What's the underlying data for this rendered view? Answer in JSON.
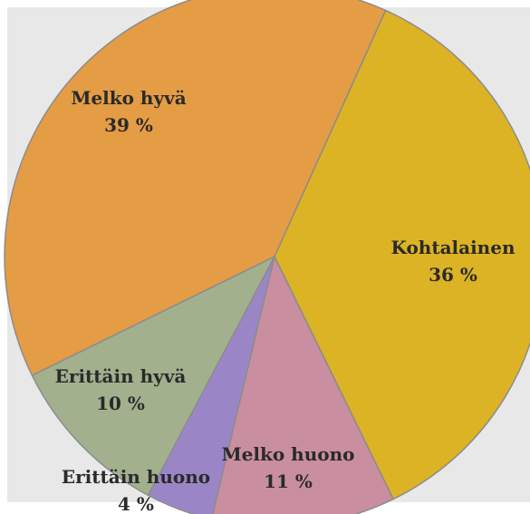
{
  "chart_data": {
    "type": "pie",
    "title": "",
    "slices": [
      {
        "label": "Kohtalainen",
        "value": 36,
        "value_text": "36 %",
        "color": "#dcb324"
      },
      {
        "label": "Melko huono",
        "value": 11,
        "value_text": "11 %",
        "color": "#c98e9f"
      },
      {
        "label": "Erittäin huono",
        "value": 4,
        "value_text": "4 %",
        "color": "#9a86c7"
      },
      {
        "label": "Erittäin hyvä",
        "value": 10,
        "value_text": "10 %",
        "color": "#a2b08e"
      },
      {
        "label": "Melko hyvä",
        "value": 39,
        "value_text": "39 %",
        "color": "#e49c45"
      }
    ],
    "legend": "none",
    "start_direction": "clockwise-from-upper-right"
  },
  "colors": {
    "background": "#e8e8e8",
    "slice_border": "#8c8c8c"
  }
}
